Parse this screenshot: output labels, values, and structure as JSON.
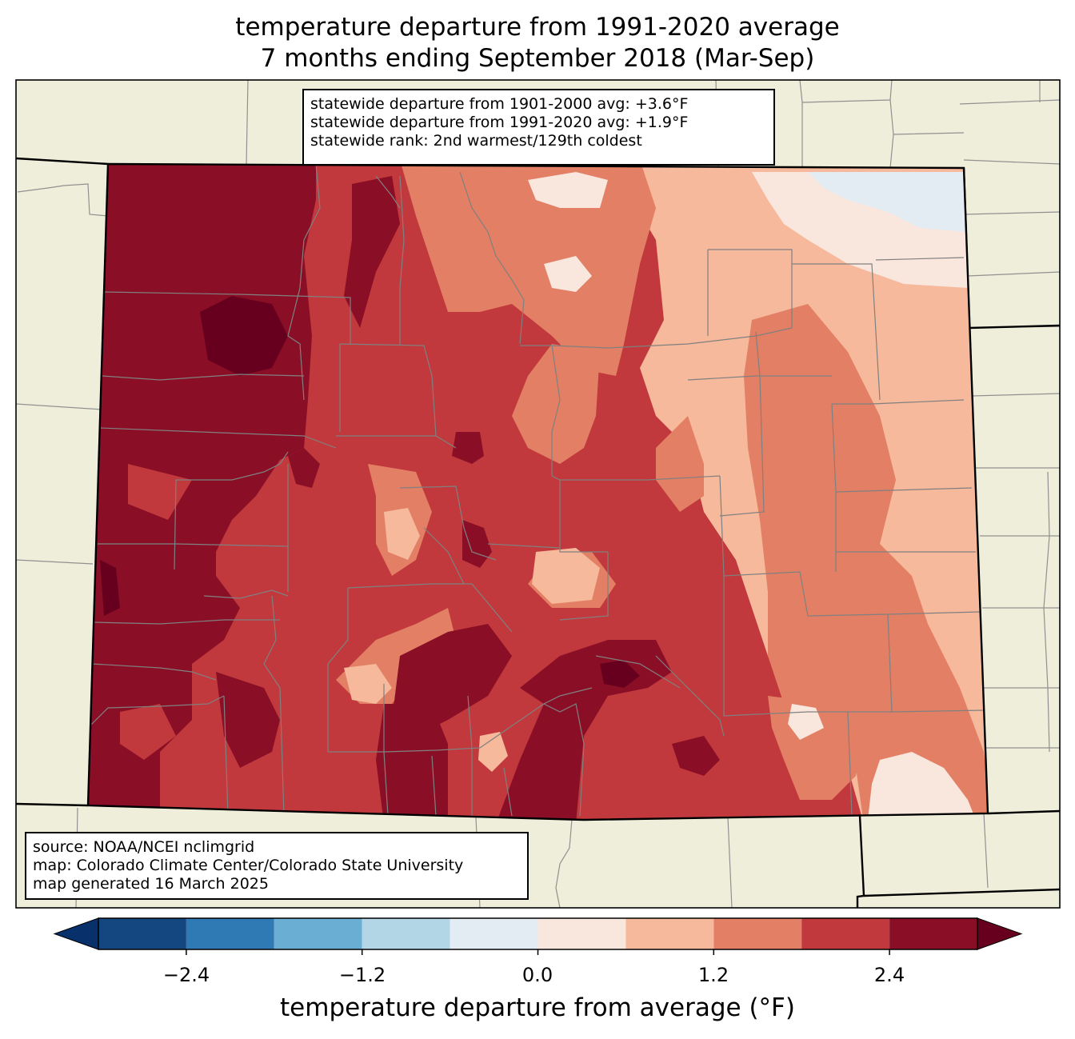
{
  "title": {
    "line1": "temperature departure from 1991-2020 average",
    "line2": "7 months ending September 2018 (Mar-Sep)"
  },
  "stats": {
    "line1": "statewide departure from 1901-2000 avg: +3.6°F",
    "line2": "statewide departure from 1991-2020 avg: +1.9°F",
    "line3": "statewide rank: 2nd warmest/129th coldest"
  },
  "source": {
    "line1": "source: NOAA/NCEI nclimgrid",
    "line2": "map: Colorado Climate Center/Colorado State University",
    "line3": "map generated 16 March 2025"
  },
  "colorbar": {
    "label": "temperature departure from average (°F)",
    "ticks": [
      "−2.4",
      "−1.2",
      "0.0",
      "1.2",
      "2.4"
    ],
    "bins": [
      -3.0,
      -2.4,
      -1.8,
      -1.2,
      -0.6,
      0.0,
      0.6,
      1.2,
      1.8,
      2.4,
      3.0
    ],
    "colors": [
      "#14467f",
      "#2f79b5",
      "#6aaed3",
      "#b3d6e7",
      "#e4ecf3",
      "#f9e6dd",
      "#f6b99b",
      "#e27f64",
      "#c1393c",
      "#8a0f26"
    ],
    "under_color": "#08306b",
    "over_color": "#67001f"
  },
  "map_colors": {
    "background": "#efeedb",
    "state_border": "#000000",
    "county_lines": "#808080"
  }
}
